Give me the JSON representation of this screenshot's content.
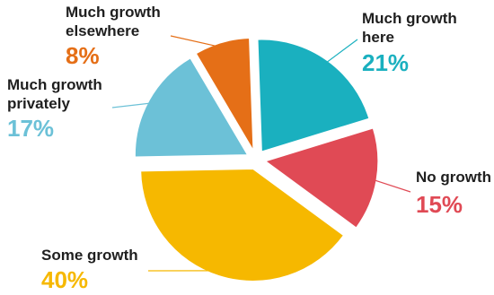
{
  "chart_data": {
    "type": "pie",
    "title": "",
    "slices": [
      {
        "lines": [
          "Much growth",
          "here"
        ],
        "value": 21,
        "label": "21%",
        "color": "#1ab0bf"
      },
      {
        "lines": [
          "No growth"
        ],
        "value": 15,
        "label": "15%",
        "color": "#e04a55"
      },
      {
        "lines": [
          "Some growth"
        ],
        "value": 40,
        "label": "40%",
        "color": "#f6b800"
      },
      {
        "lines": [
          "Much growth",
          "privately"
        ],
        "value": 17,
        "label": "17%",
        "color": "#6cc1d7"
      },
      {
        "lines": [
          "Much growth",
          "elsewhere"
        ],
        "value": 8,
        "label": "8%",
        "color": "#e56f17"
      }
    ]
  }
}
